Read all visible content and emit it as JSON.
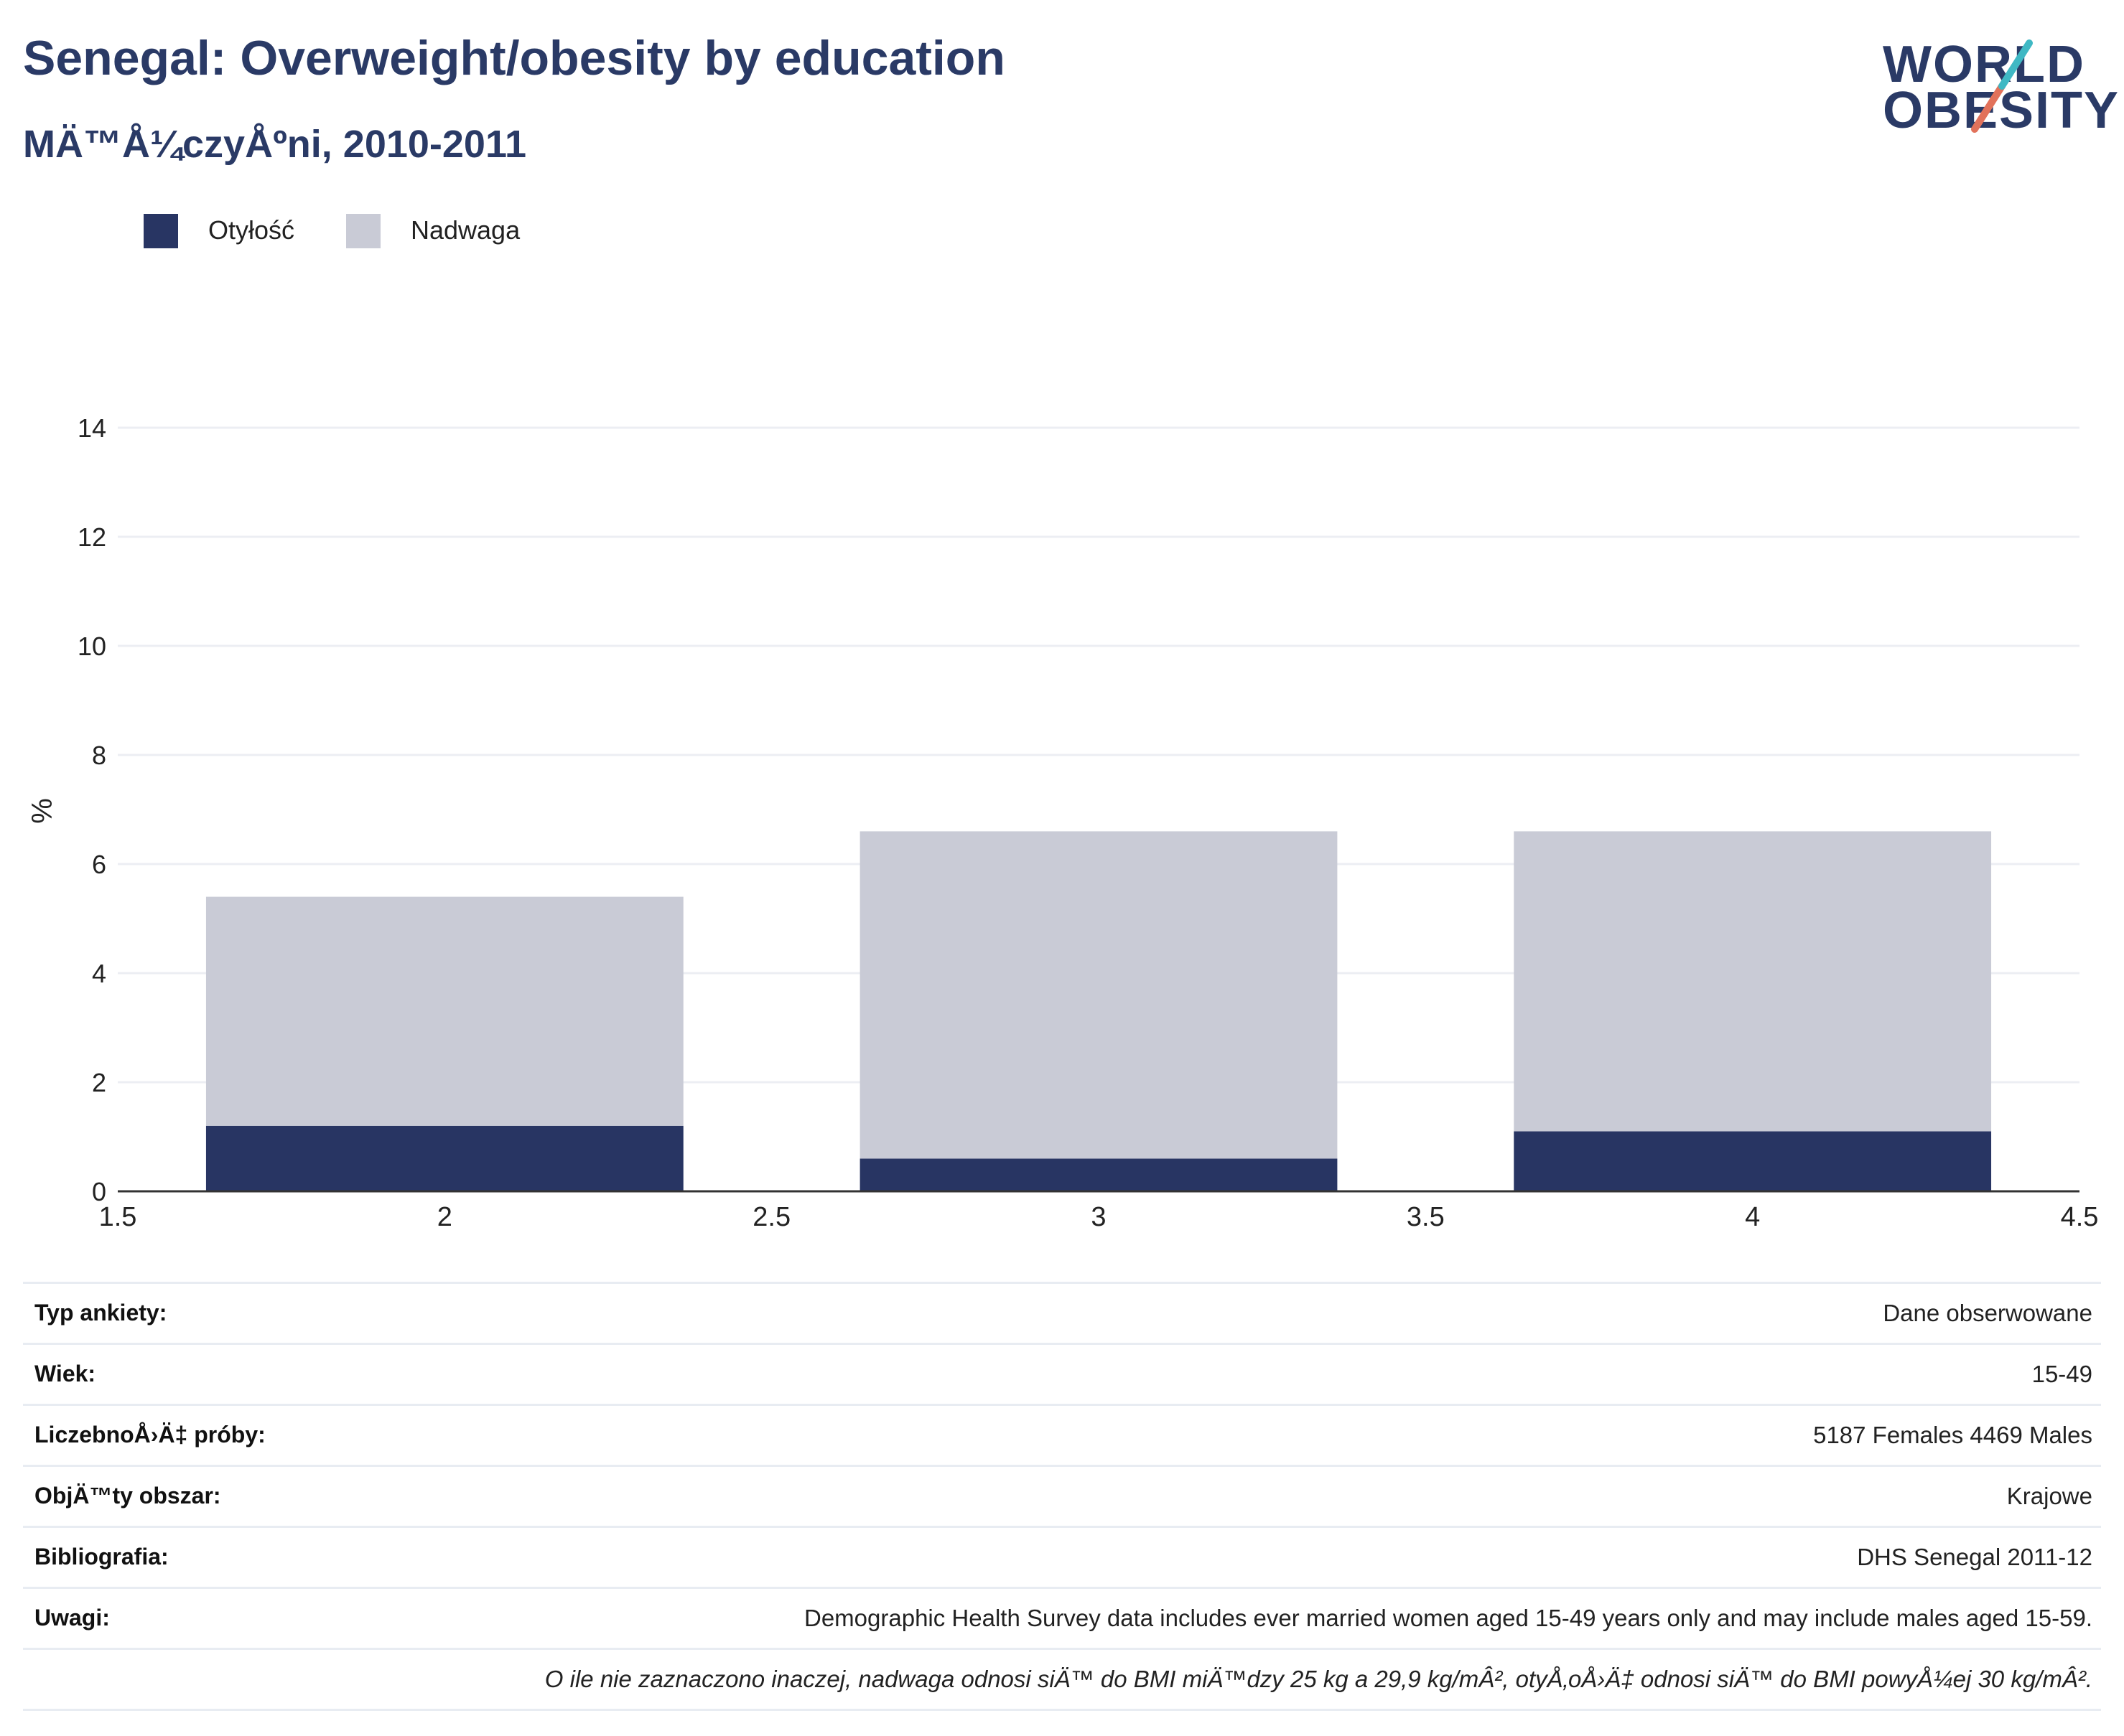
{
  "header": {
    "title": "Senegal: Overweight/obesity by education",
    "subtitle": "MÄ™Å¼czyÅºni, 2010-2011"
  },
  "logo": {
    "line1": "WORLD",
    "line2": "OBESITY",
    "accent_colors": [
      "#3fb8c4",
      "#e2725b"
    ]
  },
  "legend": {
    "items": [
      {
        "label": "Otyłość",
        "color": "#283563"
      },
      {
        "label": "Nadwaga",
        "color": "#c9cbd6"
      }
    ]
  },
  "chart_data": {
    "type": "bar",
    "stacked": true,
    "ylabel": "%",
    "xlim": [
      1.5,
      4.5
    ],
    "ylim": [
      0,
      14
    ],
    "x_ticks": [
      "1.5",
      "2",
      "2.5",
      "3",
      "3.5",
      "4",
      "4.5"
    ],
    "y_ticks": [
      "0",
      "2",
      "4",
      "6",
      "8",
      "10",
      "12",
      "14"
    ],
    "x": [
      2,
      3,
      4
    ],
    "bar_width": 0.73,
    "grid": true,
    "legend_position": "top-left",
    "series": [
      {
        "name": "Otyłość",
        "color": "#283563",
        "values": [
          1.2,
          0.6,
          1.1
        ]
      },
      {
        "name": "Nadwaga",
        "color": "#c9cbd6",
        "values": [
          4.2,
          6.0,
          5.5
        ]
      }
    ]
  },
  "info_table": {
    "rows": [
      {
        "label": "Typ ankiety:",
        "value": "Dane obserwowane"
      },
      {
        "label": "Wiek:",
        "value": "15-49"
      },
      {
        "label": "LiczebnoÅ›Ä‡ próby:",
        "value": "5187 Females 4469 Males"
      },
      {
        "label": "ObjÄ™ty obszar:",
        "value": "Krajowe"
      },
      {
        "label": "Bibliografia:",
        "value": "DHS Senegal 2011-12"
      },
      {
        "label": "Uwagi:",
        "value": "Demographic Health Survey data includes ever married women aged 15-49 years only and may include males aged 15-59."
      },
      {
        "label": "",
        "value": "O ile nie zaznaczono inaczej, nadwaga odnosi siÄ™ do BMI miÄ™dzy 25 kg a 29,9 kg/mÂ², otyÅ‚oÅ›Ä‡ odnosi siÄ™ do BMI powyÅ¼ej 30 kg/mÂ².",
        "italic": true
      }
    ]
  }
}
